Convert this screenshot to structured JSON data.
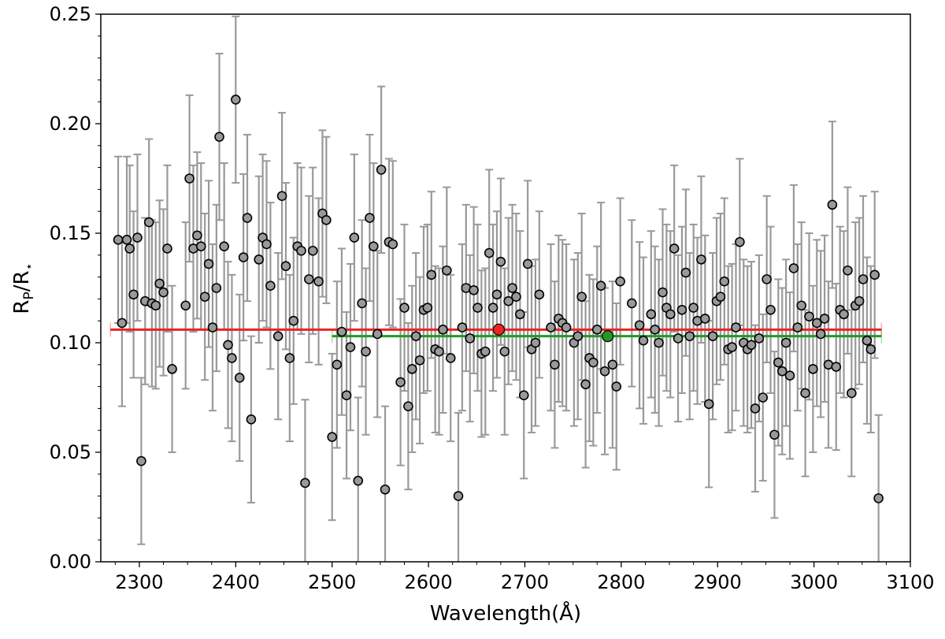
{
  "chart_data": {
    "type": "scatter",
    "title": "",
    "xlabel": "Wavelength(Å)",
    "ylabel_main": "R",
    "ylabel_sub": "P",
    "ylabel_rest": "/R",
    "ylabel_star": "⋆",
    "xlim": [
      2260,
      3100
    ],
    "ylim": [
      0.0,
      0.25
    ],
    "xticks": [
      2300,
      2400,
      2500,
      2600,
      2700,
      2800,
      2900,
      3000,
      3100
    ],
    "yticks": [
      0.0,
      0.05,
      0.1,
      0.15,
      0.2,
      0.25
    ],
    "ytick_labels": [
      "0.00",
      "0.05",
      "0.10",
      "0.15",
      "0.20",
      "0.25"
    ],
    "grid": false,
    "colors": {
      "points": "#999999",
      "point_edge": "#000000",
      "errorbar": "#999999",
      "red_fit": "#ee2222",
      "green_fit": "#229922"
    },
    "series": [
      {
        "marker": "circle",
        "errorbar_half_width": 0.038,
        "points": [
          [
            2278,
            0.147
          ],
          [
            2282,
            0.109
          ],
          [
            2287,
            0.147
          ],
          [
            2290,
            0.143
          ],
          [
            2294,
            0.122
          ],
          [
            2298,
            0.148
          ],
          [
            2302,
            0.046
          ],
          [
            2306,
            0.119
          ],
          [
            2310,
            0.155
          ],
          [
            2313,
            0.118
          ],
          [
            2317,
            0.117
          ],
          [
            2321,
            0.127
          ],
          [
            2325,
            0.123
          ],
          [
            2329,
            0.143
          ],
          [
            2334,
            0.088
          ],
          [
            2348,
            0.117
          ],
          [
            2352,
            0.175
          ],
          [
            2356,
            0.143
          ],
          [
            2360,
            0.149
          ],
          [
            2364,
            0.144
          ],
          [
            2368,
            0.121
          ],
          [
            2372,
            0.136
          ],
          [
            2376,
            0.107
          ],
          [
            2380,
            0.125
          ],
          [
            2383,
            0.194
          ],
          [
            2388,
            0.144
          ],
          [
            2392,
            0.099
          ],
          [
            2396,
            0.093
          ],
          [
            2400,
            0.211
          ],
          [
            2404,
            0.084
          ],
          [
            2408,
            0.139
          ],
          [
            2412,
            0.157
          ],
          [
            2416,
            0.065
          ],
          [
            2424,
            0.138
          ],
          [
            2428,
            0.148
          ],
          [
            2432,
            0.145
          ],
          [
            2436,
            0.126
          ],
          [
            2444,
            0.103
          ],
          [
            2448,
            0.167
          ],
          [
            2452,
            0.135
          ],
          [
            2456,
            0.093
          ],
          [
            2460,
            0.11
          ],
          [
            2464,
            0.144
          ],
          [
            2468,
            0.142
          ],
          [
            2472,
            0.036
          ],
          [
            2476,
            0.129
          ],
          [
            2480,
            0.142
          ],
          [
            2486,
            0.128
          ],
          [
            2490,
            0.159
          ],
          [
            2494,
            0.156
          ],
          [
            2500,
            0.057
          ],
          [
            2505,
            0.09
          ],
          [
            2510,
            0.105
          ],
          [
            2515,
            0.076
          ],
          [
            2519,
            0.098
          ],
          [
            2523,
            0.148
          ],
          [
            2527,
            0.037
          ],
          [
            2531,
            0.118
          ],
          [
            2535,
            0.096
          ],
          [
            2539,
            0.157
          ],
          [
            2543,
            0.144
          ],
          [
            2547,
            0.104
          ],
          [
            2551,
            0.179
          ],
          [
            2555,
            0.033
          ],
          [
            2559,
            0.146
          ],
          [
            2563,
            0.145
          ],
          [
            2571,
            0.082
          ],
          [
            2575,
            0.116
          ],
          [
            2579,
            0.071
          ],
          [
            2583,
            0.088
          ],
          [
            2587,
            0.103
          ],
          [
            2591,
            0.092
          ],
          [
            2595,
            0.115
          ],
          [
            2599,
            0.116
          ],
          [
            2603,
            0.131
          ],
          [
            2607,
            0.097
          ],
          [
            2611,
            0.096
          ],
          [
            2615,
            0.106
          ],
          [
            2619,
            0.133
          ],
          [
            2623,
            0.093
          ],
          [
            2631,
            0.03
          ],
          [
            2635,
            0.107
          ],
          [
            2639,
            0.125
          ],
          [
            2643,
            0.102
          ],
          [
            2647,
            0.124
          ],
          [
            2651,
            0.116
          ],
          [
            2655,
            0.095
          ],
          [
            2659,
            0.096
          ],
          [
            2663,
            0.141
          ],
          [
            2667,
            0.116
          ],
          [
            2671,
            0.122
          ],
          [
            2675,
            0.137
          ],
          [
            2679,
            0.096
          ],
          [
            2683,
            0.119
          ],
          [
            2687,
            0.125
          ],
          [
            2691,
            0.121
          ],
          [
            2695,
            0.113
          ],
          [
            2699,
            0.076
          ],
          [
            2703,
            0.136
          ],
          [
            2707,
            0.097
          ],
          [
            2711,
            0.1
          ],
          [
            2715,
            0.122
          ],
          [
            2727,
            0.107
          ],
          [
            2731,
            0.09
          ],
          [
            2735,
            0.111
          ],
          [
            2739,
            0.109
          ],
          [
            2743,
            0.107
          ],
          [
            2751,
            0.1
          ],
          [
            2755,
            0.103
          ],
          [
            2759,
            0.121
          ],
          [
            2763,
            0.081
          ],
          [
            2767,
            0.093
          ],
          [
            2771,
            0.091
          ],
          [
            2775,
            0.106
          ],
          [
            2779,
            0.126
          ],
          [
            2783,
            0.087
          ],
          [
            2791,
            0.09
          ],
          [
            2795,
            0.08
          ],
          [
            2799,
            0.128
          ],
          [
            2811,
            0.118
          ],
          [
            2819,
            0.108
          ],
          [
            2823,
            0.101
          ],
          [
            2831,
            0.113
          ],
          [
            2835,
            0.106
          ],
          [
            2839,
            0.1
          ],
          [
            2843,
            0.123
          ],
          [
            2847,
            0.116
          ],
          [
            2851,
            0.113
          ],
          [
            2855,
            0.143
          ],
          [
            2859,
            0.102
          ],
          [
            2863,
            0.115
          ],
          [
            2867,
            0.132
          ],
          [
            2871,
            0.103
          ],
          [
            2875,
            0.116
          ],
          [
            2879,
            0.11
          ],
          [
            2883,
            0.138
          ],
          [
            2887,
            0.111
          ],
          [
            2891,
            0.072
          ],
          [
            2895,
            0.103
          ],
          [
            2899,
            0.119
          ],
          [
            2903,
            0.121
          ],
          [
            2907,
            0.128
          ],
          [
            2911,
            0.097
          ],
          [
            2915,
            0.098
          ],
          [
            2919,
            0.107
          ],
          [
            2923,
            0.146
          ],
          [
            2927,
            0.1
          ],
          [
            2931,
            0.097
          ],
          [
            2935,
            0.099
          ],
          [
            2939,
            0.07
          ],
          [
            2943,
            0.102
          ],
          [
            2947,
            0.075
          ],
          [
            2951,
            0.129
          ],
          [
            2955,
            0.115
          ],
          [
            2959,
            0.058
          ],
          [
            2963,
            0.091
          ],
          [
            2967,
            0.087
          ],
          [
            2971,
            0.1
          ],
          [
            2975,
            0.085
          ],
          [
            2979,
            0.134
          ],
          [
            2983,
            0.107
          ],
          [
            2987,
            0.117
          ],
          [
            2991,
            0.077
          ],
          [
            2995,
            0.112
          ],
          [
            2999,
            0.088
          ],
          [
            3003,
            0.109
          ],
          [
            3007,
            0.104
          ],
          [
            3011,
            0.111
          ],
          [
            3015,
            0.09
          ],
          [
            3019,
            0.163
          ],
          [
            3023,
            0.089
          ],
          [
            3027,
            0.115
          ],
          [
            3031,
            0.113
          ],
          [
            3035,
            0.133
          ],
          [
            3039,
            0.077
          ],
          [
            3043,
            0.117
          ],
          [
            3047,
            0.119
          ],
          [
            3051,
            0.129
          ],
          [
            3055,
            0.101
          ],
          [
            3059,
            0.097
          ],
          [
            3063,
            0.131
          ],
          [
            3067,
            0.029
          ]
        ]
      },
      {
        "marker": "circle",
        "color": "#ee2222",
        "points": [
          [
            2673,
            0.106
          ]
        ]
      },
      {
        "marker": "circle",
        "color": "#229922",
        "points": [
          [
            2786,
            0.103
          ]
        ]
      }
    ],
    "fit_lines": [
      {
        "color": "#ee2222",
        "x": [
          2270,
          3070
        ],
        "y": 0.106
      },
      {
        "color": "#229922",
        "x": [
          2500,
          3070
        ],
        "y": 0.103
      }
    ]
  }
}
